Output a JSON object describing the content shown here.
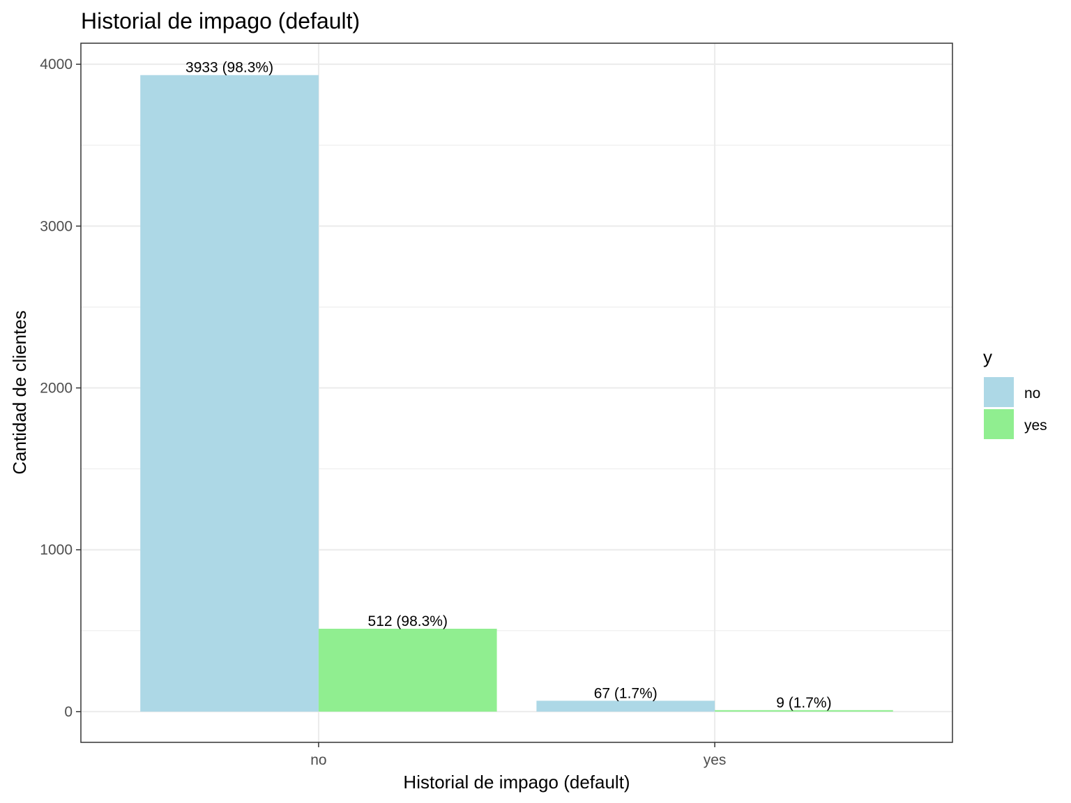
{
  "chart_data": {
    "type": "bar",
    "title": "Historial de impago (default)",
    "xlabel": "Historial de impago (default)",
    "ylabel": "Cantidad de clientes",
    "categories": [
      "no",
      "yes"
    ],
    "series": [
      {
        "name": "no",
        "color": "#add8e6",
        "values": [
          3933,
          67
        ],
        "labels": [
          "3933 (98.3%)",
          "67 (1.7%)"
        ]
      },
      {
        "name": "yes",
        "color": "#90ee90",
        "values": [
          512,
          9
        ],
        "labels": [
          "512 (98.3%)",
          "9 (1.7%)"
        ]
      }
    ],
    "ylim": [
      -190,
      4130
    ],
    "yticks": [
      0,
      1000,
      2000,
      3000,
      4000
    ],
    "legend": {
      "title": "y",
      "position": "right"
    },
    "grid": true
  }
}
